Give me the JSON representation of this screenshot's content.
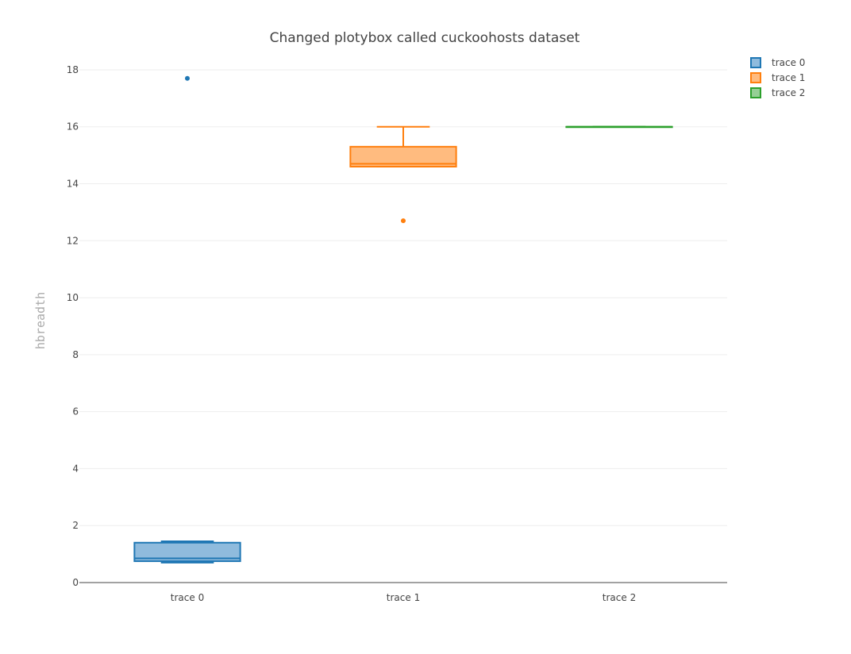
{
  "chart_data": {
    "type": "box",
    "title": "Changed plotybox called cuckoohosts dataset",
    "xlabel": "",
    "ylabel": "hbreadth",
    "ylim": [
      0,
      18.5
    ],
    "y_ticks": [
      0,
      2,
      4,
      6,
      8,
      10,
      12,
      14,
      16,
      18
    ],
    "categories": [
      "trace 0",
      "trace 1",
      "trace 2"
    ],
    "grid": true,
    "legend_position": "top-right",
    "series": [
      {
        "name": "trace 0",
        "color": "#1f77b4",
        "fill": "#8fbbdd",
        "min": 0.7,
        "q1": 0.75,
        "median": 0.85,
        "q3": 1.4,
        "max": 1.45,
        "outliers": [
          17.7
        ]
      },
      {
        "name": "trace 1",
        "color": "#ff7f0e",
        "fill": "#ffbb7f",
        "min": 14.6,
        "q1": 14.6,
        "median": 14.7,
        "q3": 15.3,
        "max": 16.0,
        "outliers": [
          12.7
        ]
      },
      {
        "name": "trace 2",
        "color": "#2ca02c",
        "fill": "#95cf95",
        "min": 16.0,
        "q1": 16.0,
        "median": 16.0,
        "q3": 16.0,
        "max": 16.0,
        "outliers": []
      }
    ]
  }
}
